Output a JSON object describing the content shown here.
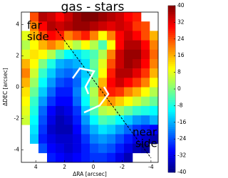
{
  "chart_data": {
    "type": "heatmap",
    "title": "gas - stars",
    "xlabel": "ΔRA [arcsec]",
    "ylabel": "ΔDEC [arcsec]",
    "xlim": [
      5,
      -4.5
    ],
    "ylim": [
      -4.8,
      4.8
    ],
    "xticks": [
      4,
      2,
      0,
      -2,
      -4
    ],
    "yticks": [
      4,
      2,
      0,
      -2,
      -4
    ],
    "colorbar_lim": [
      -40,
      40
    ],
    "colorbar_ticks": [
      40,
      32,
      24,
      16,
      8,
      0,
      -8,
      -16,
      -24,
      -32,
      -40
    ],
    "colormap": "jet",
    "annotations": [
      [
        "far",
        "side"
      ],
      [
        "near",
        "side"
      ]
    ],
    "z": [
      [
        null,
        24,
        36,
        34,
        30,
        34,
        38,
        40,
        40,
        38,
        36,
        34,
        30,
        28,
        null,
        null
      ],
      [
        null,
        20,
        30,
        36,
        34,
        36,
        38,
        38,
        36,
        34,
        32,
        34,
        32,
        26,
        24,
        null
      ],
      [
        8,
        16,
        24,
        30,
        28,
        20,
        24,
        28,
        20,
        10,
        20,
        30,
        34,
        30,
        24,
        16
      ],
      [
        4,
        10,
        16,
        20,
        16,
        8,
        4,
        10,
        4,
        -4,
        10,
        30,
        36,
        36,
        30,
        20
      ],
      [
        8,
        12,
        10,
        4,
        -4,
        -10,
        -12,
        -8,
        -4,
        4,
        20,
        34,
        38,
        38,
        32,
        22
      ],
      [
        16,
        10,
        0,
        -8,
        -16,
        -18,
        -16,
        -12,
        -2,
        8,
        24,
        34,
        38,
        36,
        30,
        20
      ],
      [
        20,
        6,
        -6,
        -14,
        -20,
        -22,
        -20,
        -14,
        -4,
        10,
        28,
        36,
        36,
        32,
        26,
        16
      ],
      [
        16,
        2,
        -10,
        -18,
        -24,
        -26,
        -22,
        -12,
        0,
        16,
        30,
        34,
        30,
        26,
        20,
        10
      ],
      [
        12,
        -2,
        -14,
        -22,
        -28,
        -28,
        -20,
        -8,
        4,
        20,
        28,
        26,
        20,
        16,
        10,
        4
      ],
      [
        10,
        -6,
        -18,
        -26,
        -30,
        -30,
        -22,
        -10,
        2,
        14,
        18,
        14,
        10,
        6,
        2,
        -2
      ],
      [
        8,
        -8,
        -22,
        -30,
        -34,
        -32,
        -26,
        -14,
        -4,
        4,
        6,
        2,
        -2,
        -6,
        -8,
        -10
      ],
      [
        6,
        -10,
        -24,
        -32,
        -36,
        -34,
        -28,
        -18,
        -10,
        -4,
        -6,
        -10,
        -14,
        -18,
        -20,
        -16
      ],
      [
        null,
        -12,
        -26,
        -34,
        -36,
        -36,
        -30,
        -22,
        -16,
        -12,
        -14,
        -18,
        -22,
        -26,
        -28,
        -30
      ],
      [
        null,
        -14,
        -28,
        -32,
        -34,
        -34,
        -32,
        -26,
        -20,
        -18,
        -20,
        -24,
        -28,
        -32,
        -34,
        -36
      ],
      [
        null,
        null,
        -24,
        -30,
        -32,
        -34,
        -32,
        -28,
        -24,
        -22,
        -24,
        -28,
        -32,
        -36,
        -38,
        null
      ],
      [
        null,
        null,
        null,
        -28,
        -30,
        -32,
        -30,
        -28,
        -26,
        -26,
        -28,
        -32,
        -36,
        null,
        null,
        null
      ]
    ]
  }
}
